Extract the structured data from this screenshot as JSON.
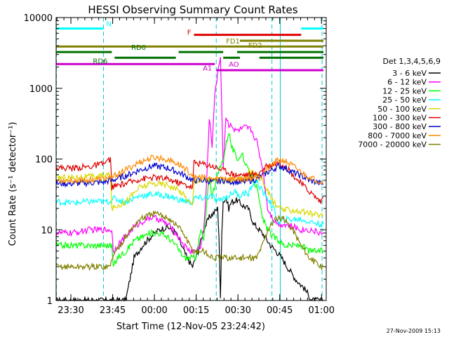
{
  "chart_data": {
    "type": "line",
    "title": "HESSI Observing Summary Count Rates",
    "xlabel": "Start Time (12-Nov-05 23:24:42)",
    "ylabel": "Count Rate (s⁻¹ detector⁻¹)",
    "x_unit": "minutes since 23:24:42",
    "xlim": [
      0,
      97
    ],
    "ylim": [
      1,
      10000
    ],
    "yscale": "log",
    "x_ticks": [
      {
        "x": 5.3,
        "label": "23:30"
      },
      {
        "x": 20.3,
        "label": "23:45"
      },
      {
        "x": 35.3,
        "label": "00:00"
      },
      {
        "x": 50.3,
        "label": "00:15"
      },
      {
        "x": 65.3,
        "label": "00:30"
      },
      {
        "x": 80.3,
        "label": "00:45"
      },
      {
        "x": 95.3,
        "label": "01:00"
      }
    ],
    "y_ticks": [
      {
        "y": 1,
        "label": "1"
      },
      {
        "y": 10,
        "label": "10"
      },
      {
        "y": 100,
        "label": "100"
      },
      {
        "y": 1000,
        "label": "1000"
      },
      {
        "y": 10000,
        "label": "10000"
      }
    ],
    "legend": {
      "title": "Det 1,3,4,5,6,9",
      "placement": "right"
    },
    "series": [
      {
        "name": "3 - 6 keV",
        "color": "#000000",
        "x": [
          0,
          17,
          19,
          22,
          25,
          28,
          31,
          34,
          37,
          40,
          43,
          47,
          49,
          51,
          53,
          55,
          57,
          58,
          58.5,
          59,
          59.5,
          60,
          61,
          62,
          63,
          65,
          67,
          69,
          71,
          73,
          75,
          77,
          79,
          81,
          83,
          86,
          89,
          92,
          95,
          96
        ],
        "y": [
          1,
          1,
          1,
          1,
          1,
          4,
          6,
          8,
          10,
          11,
          9,
          4,
          3,
          5,
          10,
          15,
          18,
          20,
          8,
          1,
          10,
          25,
          28,
          20,
          25,
          26,
          22,
          20,
          12,
          10,
          8,
          6,
          5,
          4,
          3,
          2,
          1.5,
          1,
          1,
          1
        ]
      },
      {
        "name": "6 - 12 keV",
        "color": "#ff00ff",
        "x": [
          0,
          6,
          12,
          17,
          19,
          20,
          20.5,
          22,
          25,
          28,
          31,
          34,
          37,
          40,
          43,
          46,
          48,
          50,
          52,
          53,
          54,
          55,
          56,
          57,
          58,
          59,
          60,
          61,
          62,
          63,
          64,
          66,
          68,
          70,
          72,
          74,
          76,
          78,
          80,
          82,
          85,
          88,
          91,
          95,
          96
        ],
        "y": [
          9,
          9,
          10,
          10,
          10,
          10,
          5,
          6,
          8,
          11,
          13,
          15,
          14,
          12,
          9,
          6,
          5,
          5,
          6,
          10,
          40,
          400,
          150,
          900,
          1500,
          3000,
          80,
          400,
          300,
          320,
          250,
          260,
          280,
          260,
          180,
          80,
          20,
          14,
          12,
          12,
          11,
          10,
          10,
          9,
          9
        ]
      },
      {
        "name": "12 - 25 keV",
        "color": "#00ff00",
        "x": [
          0,
          6,
          12,
          17,
          19,
          20,
          20.5,
          22,
          25,
          28,
          31,
          34,
          37,
          40,
          43,
          46,
          48,
          50,
          51,
          52,
          53,
          55,
          56,
          58,
          60,
          62,
          63,
          65,
          67,
          68,
          70,
          72,
          74,
          76,
          78,
          80,
          82,
          85,
          88,
          91,
          95,
          96
        ],
        "y": [
          6,
          6,
          6,
          6,
          6,
          6,
          3,
          4,
          5,
          7,
          8,
          9,
          9,
          8,
          6,
          4,
          4,
          4,
          6,
          10,
          7,
          60,
          30,
          60,
          100,
          250,
          150,
          100,
          120,
          80,
          60,
          40,
          15,
          10,
          8,
          7,
          6,
          6,
          6,
          5,
          5,
          5
        ]
      },
      {
        "name": "25 - 50 keV",
        "color": "#00ffff",
        "x": [
          0,
          6,
          12,
          17,
          19.5,
          20,
          25,
          30,
          35,
          40,
          45,
          49,
          49.5,
          53,
          56,
          58,
          60,
          62,
          64,
          66,
          68,
          69,
          70,
          72,
          74,
          76,
          78,
          80,
          82,
          85,
          88,
          91,
          95,
          96
        ],
        "y": [
          25,
          24,
          25,
          25,
          25,
          28,
          25,
          30,
          32,
          30,
          26,
          24,
          28,
          28,
          30,
          25,
          28,
          30,
          35,
          30,
          34,
          30,
          40,
          50,
          35,
          28,
          20,
          12,
          14,
          14,
          14,
          13,
          12,
          12
        ]
      },
      {
        "name": "50 - 100 keV",
        "color": "#d8d800",
        "x": [
          0,
          6,
          12,
          17,
          19.5,
          20,
          25,
          30,
          35,
          40,
          45,
          49,
          49.5,
          53,
          56,
          58,
          60,
          62,
          64,
          66,
          68,
          70,
          72,
          74,
          76,
          78,
          80,
          82,
          85,
          88,
          91,
          95,
          96
        ],
        "y": [
          55,
          55,
          56,
          58,
          60,
          20,
          25,
          40,
          45,
          44,
          34,
          22,
          50,
          50,
          50,
          50,
          50,
          50,
          50,
          50,
          55,
          70,
          60,
          50,
          35,
          25,
          20,
          19,
          19,
          18,
          17,
          16,
          16
        ]
      },
      {
        "name": "100 - 300 keV",
        "color": "#dd0000",
        "x": [
          0,
          6,
          12,
          17,
          19.5,
          20,
          25,
          30,
          35,
          40,
          45,
          49,
          49.5,
          53,
          56,
          58,
          60,
          62,
          64,
          66,
          68,
          70,
          72,
          74,
          76,
          78,
          80,
          82,
          85,
          88,
          91,
          95,
          96
        ],
        "y": [
          75,
          75,
          78,
          85,
          100,
          40,
          45,
          52,
          55,
          52,
          45,
          40,
          90,
          85,
          80,
          75,
          70,
          65,
          60,
          60,
          60,
          60,
          60,
          70,
          80,
          85,
          90,
          80,
          60,
          45,
          35,
          25,
          30
        ]
      },
      {
        "name": "300 - 800 keV",
        "color": "#0000cc",
        "x": [
          0,
          6,
          12,
          17,
          19.5,
          20,
          25,
          30,
          35,
          40,
          45,
          49,
          49.5,
          53,
          56,
          58,
          60,
          62,
          64,
          66,
          68,
          70,
          72,
          74,
          76,
          78,
          80,
          82,
          85,
          88,
          91,
          95,
          96
        ],
        "y": [
          45,
          45,
          46,
          47,
          50,
          50,
          58,
          70,
          80,
          75,
          62,
          50,
          50,
          50,
          48,
          48,
          50,
          48,
          48,
          47,
          48,
          50,
          52,
          58,
          65,
          72,
          80,
          75,
          65,
          58,
          50,
          45,
          44
        ]
      },
      {
        "name": "800 - 7000 keV",
        "color": "#ff8800",
        "x": [
          0,
          6,
          12,
          17,
          19.5,
          20,
          25,
          30,
          35,
          40,
          45,
          49,
          49.5,
          53,
          56,
          58,
          60,
          62,
          64,
          66,
          68,
          70,
          72,
          74,
          76,
          78,
          80,
          82,
          85,
          88,
          91,
          95,
          96
        ],
        "y": [
          50,
          50,
          51,
          52,
          55,
          55,
          70,
          90,
          105,
          100,
          80,
          60,
          55,
          55,
          52,
          52,
          55,
          52,
          52,
          52,
          52,
          54,
          56,
          62,
          72,
          85,
          98,
          95,
          80,
          65,
          55,
          48,
          47
        ]
      },
      {
        "name": "7000 - 20000 keV",
        "color": "#808000",
        "x": [
          0,
          6,
          12,
          17,
          19.5,
          20,
          25,
          30,
          35,
          40,
          45,
          49,
          49.5,
          53,
          56,
          58,
          60,
          62,
          64,
          66,
          68,
          70,
          72,
          74,
          76,
          78,
          80,
          82,
          85,
          88,
          91,
          95,
          96
        ],
        "y": [
          3,
          3,
          3,
          3,
          3,
          4,
          8,
          14,
          17,
          15,
          10,
          5,
          5,
          5,
          4,
          4,
          4,
          4,
          4,
          4,
          4,
          4,
          4,
          6,
          10,
          13,
          15,
          14,
          10,
          6,
          4,
          3,
          3
        ]
      }
    ],
    "state_bars": [
      {
        "label": "N",
        "color": "#00ffff",
        "y": 7000,
        "segments": [
          [
            0,
            17
          ],
          [
            88,
            96
          ]
        ]
      },
      {
        "label": "F",
        "color": "#dd0000",
        "y": 5700,
        "segments": [
          [
            49.5,
            88
          ]
        ]
      },
      {
        "label": "FD1",
        "color": "#808000",
        "y": 3900,
        "segments": [
          [
            0,
            96
          ]
        ]
      },
      {
        "label": "FD2",
        "color": "#808000",
        "y": 4700,
        "segments": [
          [
            66,
            96
          ]
        ]
      },
      {
        "label": "RD0",
        "color": "#007000",
        "y": 3250,
        "segments": [
          [
            0,
            20
          ],
          [
            44,
            60
          ],
          [
            65,
            96
          ]
        ]
      },
      {
        "label": "RD6",
        "color": "#007000",
        "y": 2700,
        "segments": [
          [
            21,
            43
          ],
          [
            60,
            66
          ],
          [
            73,
            96
          ]
        ]
      },
      {
        "label": "A1",
        "color": "#cc00cc",
        "y": 2200,
        "segments": [
          [
            0,
            57
          ]
        ]
      },
      {
        "label": "AO",
        "color": "#cc00cc",
        "y": 1800,
        "segments": [
          [
            57.5,
            96
          ]
        ]
      }
    ],
    "vertical_markers": [
      {
        "x": 0.1,
        "color": "#00cccc",
        "style": "dashed"
      },
      {
        "x": 17,
        "color": "#00cccc",
        "style": "dashed"
      },
      {
        "x": 57.5,
        "color": "#00cccc",
        "style": "dashed"
      },
      {
        "x": 77.5,
        "color": "#00cccc",
        "style": "dashed"
      },
      {
        "x": 80.5,
        "color": "#00cccc",
        "style": "solid"
      },
      {
        "x": 95.5,
        "color": "#00cccc",
        "style": "dashed"
      }
    ],
    "timestamp": "27-Nov-2009 15:13"
  }
}
